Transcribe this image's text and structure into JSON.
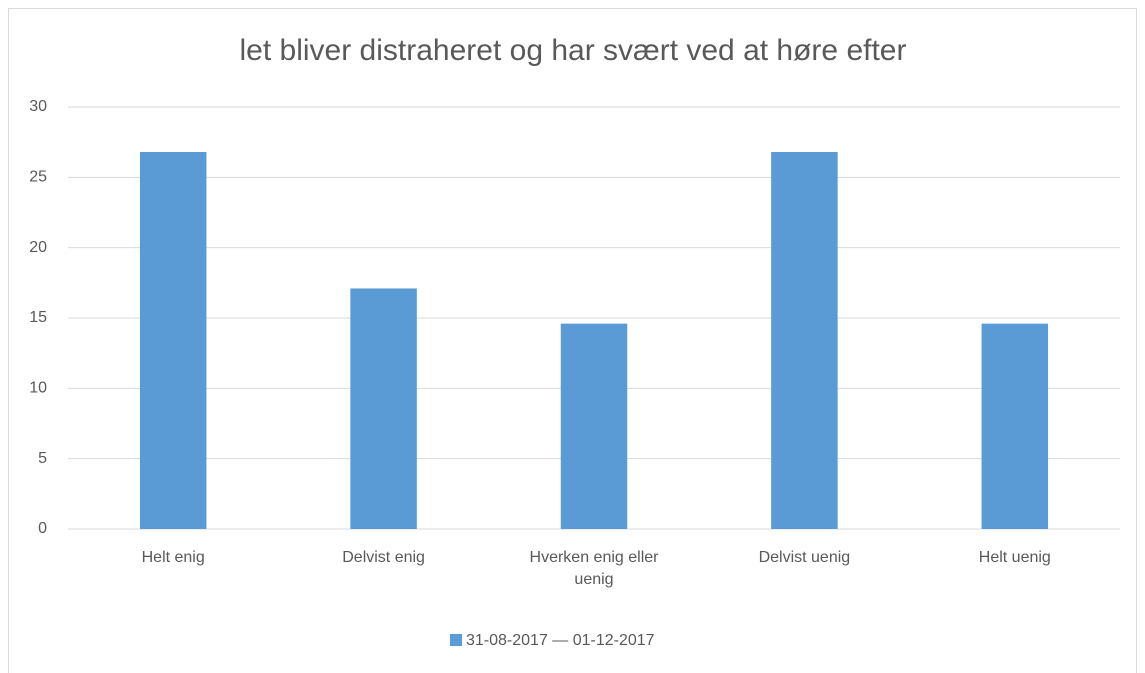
{
  "chart_data": {
    "type": "bar",
    "title": "let bliver distraheret og har svært ved at høre efter",
    "categories": [
      "Helt enig",
      "Delvist enig",
      "Hverken enig eller uenig",
      "Delvist uenig",
      "Helt uenig"
    ],
    "series": [
      {
        "name": "31-08-2017 — 01-12-2017",
        "color": "#5b9bd5",
        "values": [
          26.8,
          17.1,
          14.6,
          26.8,
          14.6
        ]
      }
    ],
    "ylim": [
      0,
      30
    ],
    "yticks": [
      0,
      5,
      10,
      15,
      20,
      25,
      30
    ],
    "grid": true,
    "legend": "bottom"
  }
}
